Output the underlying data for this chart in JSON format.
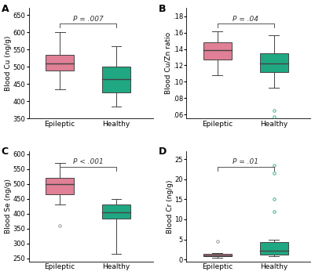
{
  "panels": {
    "A": {
      "label": "A",
      "ylabel": "Blood Cu (ng/g)",
      "ylim": [
        350,
        670
      ],
      "yticks": [
        350,
        400,
        450,
        500,
        550,
        600,
        650
      ],
      "yticklabels": [
        "350",
        "400",
        "450",
        "500",
        "550",
        "600",
        "650"
      ],
      "pvalue": "P = .007",
      "groups": {
        "Epileptic": {
          "median": 510,
          "q1": 490,
          "q3": 535,
          "whisker_low": 435,
          "whisker_high": 600,
          "outliers": [],
          "color": "#e07f95",
          "edge_color": "#444444"
        },
        "Healthy": {
          "median": 465,
          "q1": 425,
          "q3": 500,
          "whisker_low": 385,
          "whisker_high": 560,
          "outliers": [],
          "color": "#1fa882",
          "edge_color": "#444444"
        }
      }
    },
    "B": {
      "label": "B",
      "ylabel": "Blood Cu/Zn ratio",
      "ylim": [
        0.055,
        0.19
      ],
      "yticks": [
        0.06,
        0.08,
        0.1,
        0.12,
        0.14,
        0.16,
        0.18
      ],
      "yticklabels": [
        ".06",
        ".08",
        ".10",
        ".12",
        ".14",
        ".16",
        ".18"
      ],
      "pvalue": "P = .04",
      "groups": {
        "Epileptic": {
          "median": 0.139,
          "q1": 0.127,
          "q3": 0.148,
          "whisker_low": 0.108,
          "whisker_high": 0.162,
          "outliers": [],
          "color": "#e07f95",
          "edge_color": "#444444"
        },
        "Healthy": {
          "median": 0.122,
          "q1": 0.112,
          "q3": 0.135,
          "whisker_low": 0.093,
          "whisker_high": 0.157,
          "outliers": [
            0.065,
            0.057
          ],
          "color": "#1fa882",
          "edge_color": "#444444"
        }
      }
    },
    "C": {
      "label": "C",
      "ylabel": "Blood Se (ng/g)",
      "ylim": [
        240,
        610
      ],
      "yticks": [
        250,
        300,
        350,
        400,
        450,
        500,
        550,
        600
      ],
      "yticklabels": [
        "250",
        "300",
        "350",
        "400",
        "450",
        "500",
        "550",
        "600"
      ],
      "pvalue": "P < .001",
      "groups": {
        "Epileptic": {
          "median": 500,
          "q1": 465,
          "q3": 520,
          "whisker_low": 430,
          "whisker_high": 570,
          "outliers": [
            360
          ],
          "color": "#e07f95",
          "edge_color": "#444444"
        },
        "Healthy": {
          "median": 405,
          "q1": 385,
          "q3": 430,
          "whisker_low": 265,
          "whisker_high": 450,
          "outliers": [],
          "color": "#1fa882",
          "edge_color": "#444444"
        }
      }
    },
    "D": {
      "label": "D",
      "ylabel": "Blood Cr (ng/g)",
      "ylim": [
        -0.5,
        27
      ],
      "yticks": [
        0,
        5,
        10,
        15,
        20,
        25
      ],
      "yticklabels": [
        "0",
        "5",
        "10",
        "15",
        "20",
        "25"
      ],
      "pvalue": "P = .01",
      "groups": {
        "Epileptic": {
          "median": 1.0,
          "q1": 0.8,
          "q3": 1.3,
          "whisker_low": 0.5,
          "whisker_high": 1.5,
          "outliers": [
            4.5
          ],
          "color": "#e07f95",
          "edge_color": "#444444"
        },
        "Healthy": {
          "median": 2.2,
          "q1": 1.2,
          "q3": 4.3,
          "whisker_low": 0.8,
          "whisker_high": 5.0,
          "outliers": [
            12.0,
            15.0,
            21.5,
            23.5
          ],
          "color": "#1fa882",
          "edge_color": "#444444"
        }
      }
    }
  },
  "background_color": "#ffffff",
  "panel_bg": "#ffffff",
  "box_width": 0.5,
  "xlabel_epileptic": "Epileptic",
  "xlabel_healthy": "Healthy",
  "axis_label_fontsize": 6.5,
  "tick_fontsize": 6,
  "pvalue_fontsize": 6.5,
  "panel_label_fontsize": 9
}
